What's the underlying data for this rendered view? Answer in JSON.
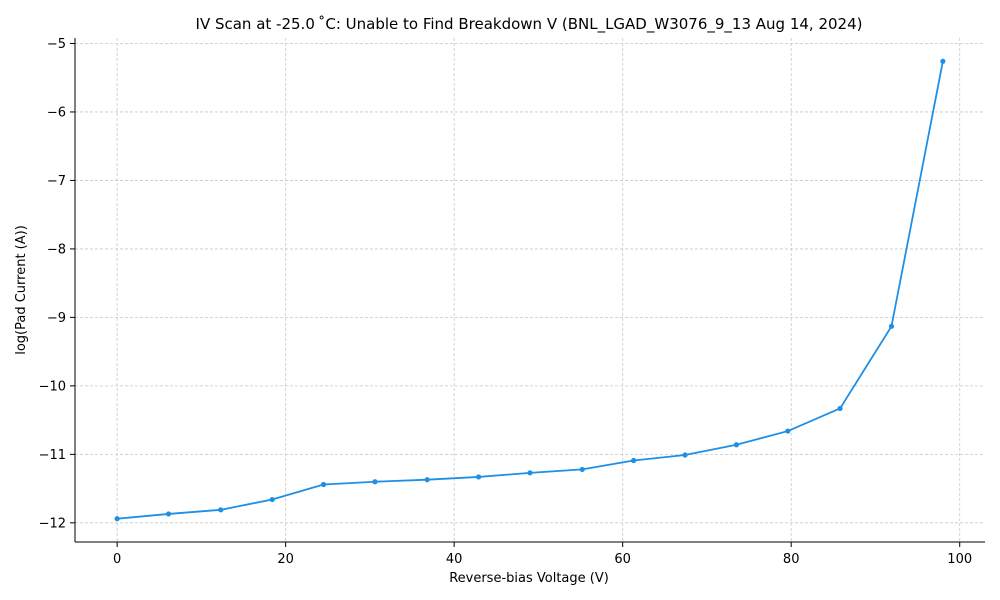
{
  "chart_data": {
    "type": "line",
    "title": "IV Scan at -25.0 ˚C: Unable to Find Breakdown V (BNL_LGAD_W3076_9_13 Aug 14, 2024)",
    "xlabel": "Reverse-bias Voltage (V)",
    "ylabel": "log(Pad Current (A))",
    "xlim": [
      -5,
      103
    ],
    "ylim": [
      -12.28,
      -4.92
    ],
    "xticks": [
      0,
      20,
      40,
      60,
      80,
      100
    ],
    "xtick_labels": [
      "0",
      "20",
      "40",
      "60",
      "80",
      "100"
    ],
    "yticks": [
      -12,
      -11,
      -10,
      -9,
      -8,
      -7,
      -6,
      -5
    ],
    "ytick_labels": [
      "−12",
      "−11",
      "−10",
      "−9",
      "−8",
      "−7",
      "−6",
      "−5"
    ],
    "grid": true,
    "legend": "none",
    "color": "#1f8fe5",
    "series": [
      {
        "x": [
          0,
          6.1,
          12.3,
          18.4,
          24.5,
          30.6,
          36.8,
          42.9,
          49.0,
          55.2,
          61.3,
          67.4,
          73.5,
          79.6,
          85.8,
          91.9,
          98.0
        ],
        "y": [
          -11.94,
          -11.87,
          -11.81,
          -11.66,
          -11.44,
          -11.4,
          -11.37,
          -11.33,
          -11.27,
          -11.22,
          -11.09,
          -11.01,
          -10.86,
          -10.66,
          -10.33,
          -9.13,
          -5.26
        ]
      }
    ]
  }
}
